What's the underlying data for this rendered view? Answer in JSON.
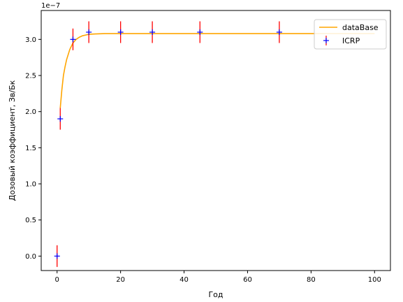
{
  "chart_data": {
    "type": "line",
    "title": "",
    "xlabel": "Год",
    "ylabel": "Дозовый коэффициент, Зв/Бк",
    "y_offset_text": "1e−7",
    "y_scale_factor": 1e-07,
    "xlim": [
      -5,
      105
    ],
    "ylim": [
      -0.2,
      3.4
    ],
    "xticks": [
      0,
      20,
      40,
      60,
      80,
      100
    ],
    "xtick_labels": [
      "0",
      "20",
      "40",
      "60",
      "80",
      "100"
    ],
    "yticks": [
      0.0,
      0.5,
      1.0,
      1.5,
      2.0,
      2.5,
      3.0
    ],
    "ytick_labels": [
      "0.0",
      "0.5",
      "1.0",
      "1.5",
      "2.0",
      "2.5",
      "3.0"
    ],
    "grid": false,
    "legend_position": "top-right",
    "series": [
      {
        "name": "dataBase",
        "kind": "line",
        "color": "#ffa500",
        "x": [
          1,
          1.5,
          2,
          2.5,
          3,
          4,
          5,
          6,
          7,
          8,
          9,
          10,
          12,
          15,
          20,
          30,
          40,
          50,
          60,
          70,
          80,
          90,
          100
        ],
        "y": [
          2.05,
          2.3,
          2.5,
          2.62,
          2.72,
          2.86,
          2.95,
          3.0,
          3.03,
          3.05,
          3.06,
          3.07,
          3.075,
          3.08,
          3.08,
          3.08,
          3.08,
          3.08,
          3.08,
          3.08,
          3.08,
          3.08,
          3.08
        ]
      },
      {
        "name": "ICRP",
        "kind": "errorbar",
        "marker_color": "#0000ff",
        "error_color": "#ff0000",
        "x": [
          0,
          1,
          5,
          10,
          20,
          30,
          45,
          70
        ],
        "y": [
          0.0,
          1.9,
          3.0,
          3.1,
          3.1,
          3.1,
          3.1,
          3.1
        ],
        "yerr": [
          0.15,
          0.15,
          0.15,
          0.15,
          0.15,
          0.15,
          0.15,
          0.15
        ]
      }
    ]
  }
}
